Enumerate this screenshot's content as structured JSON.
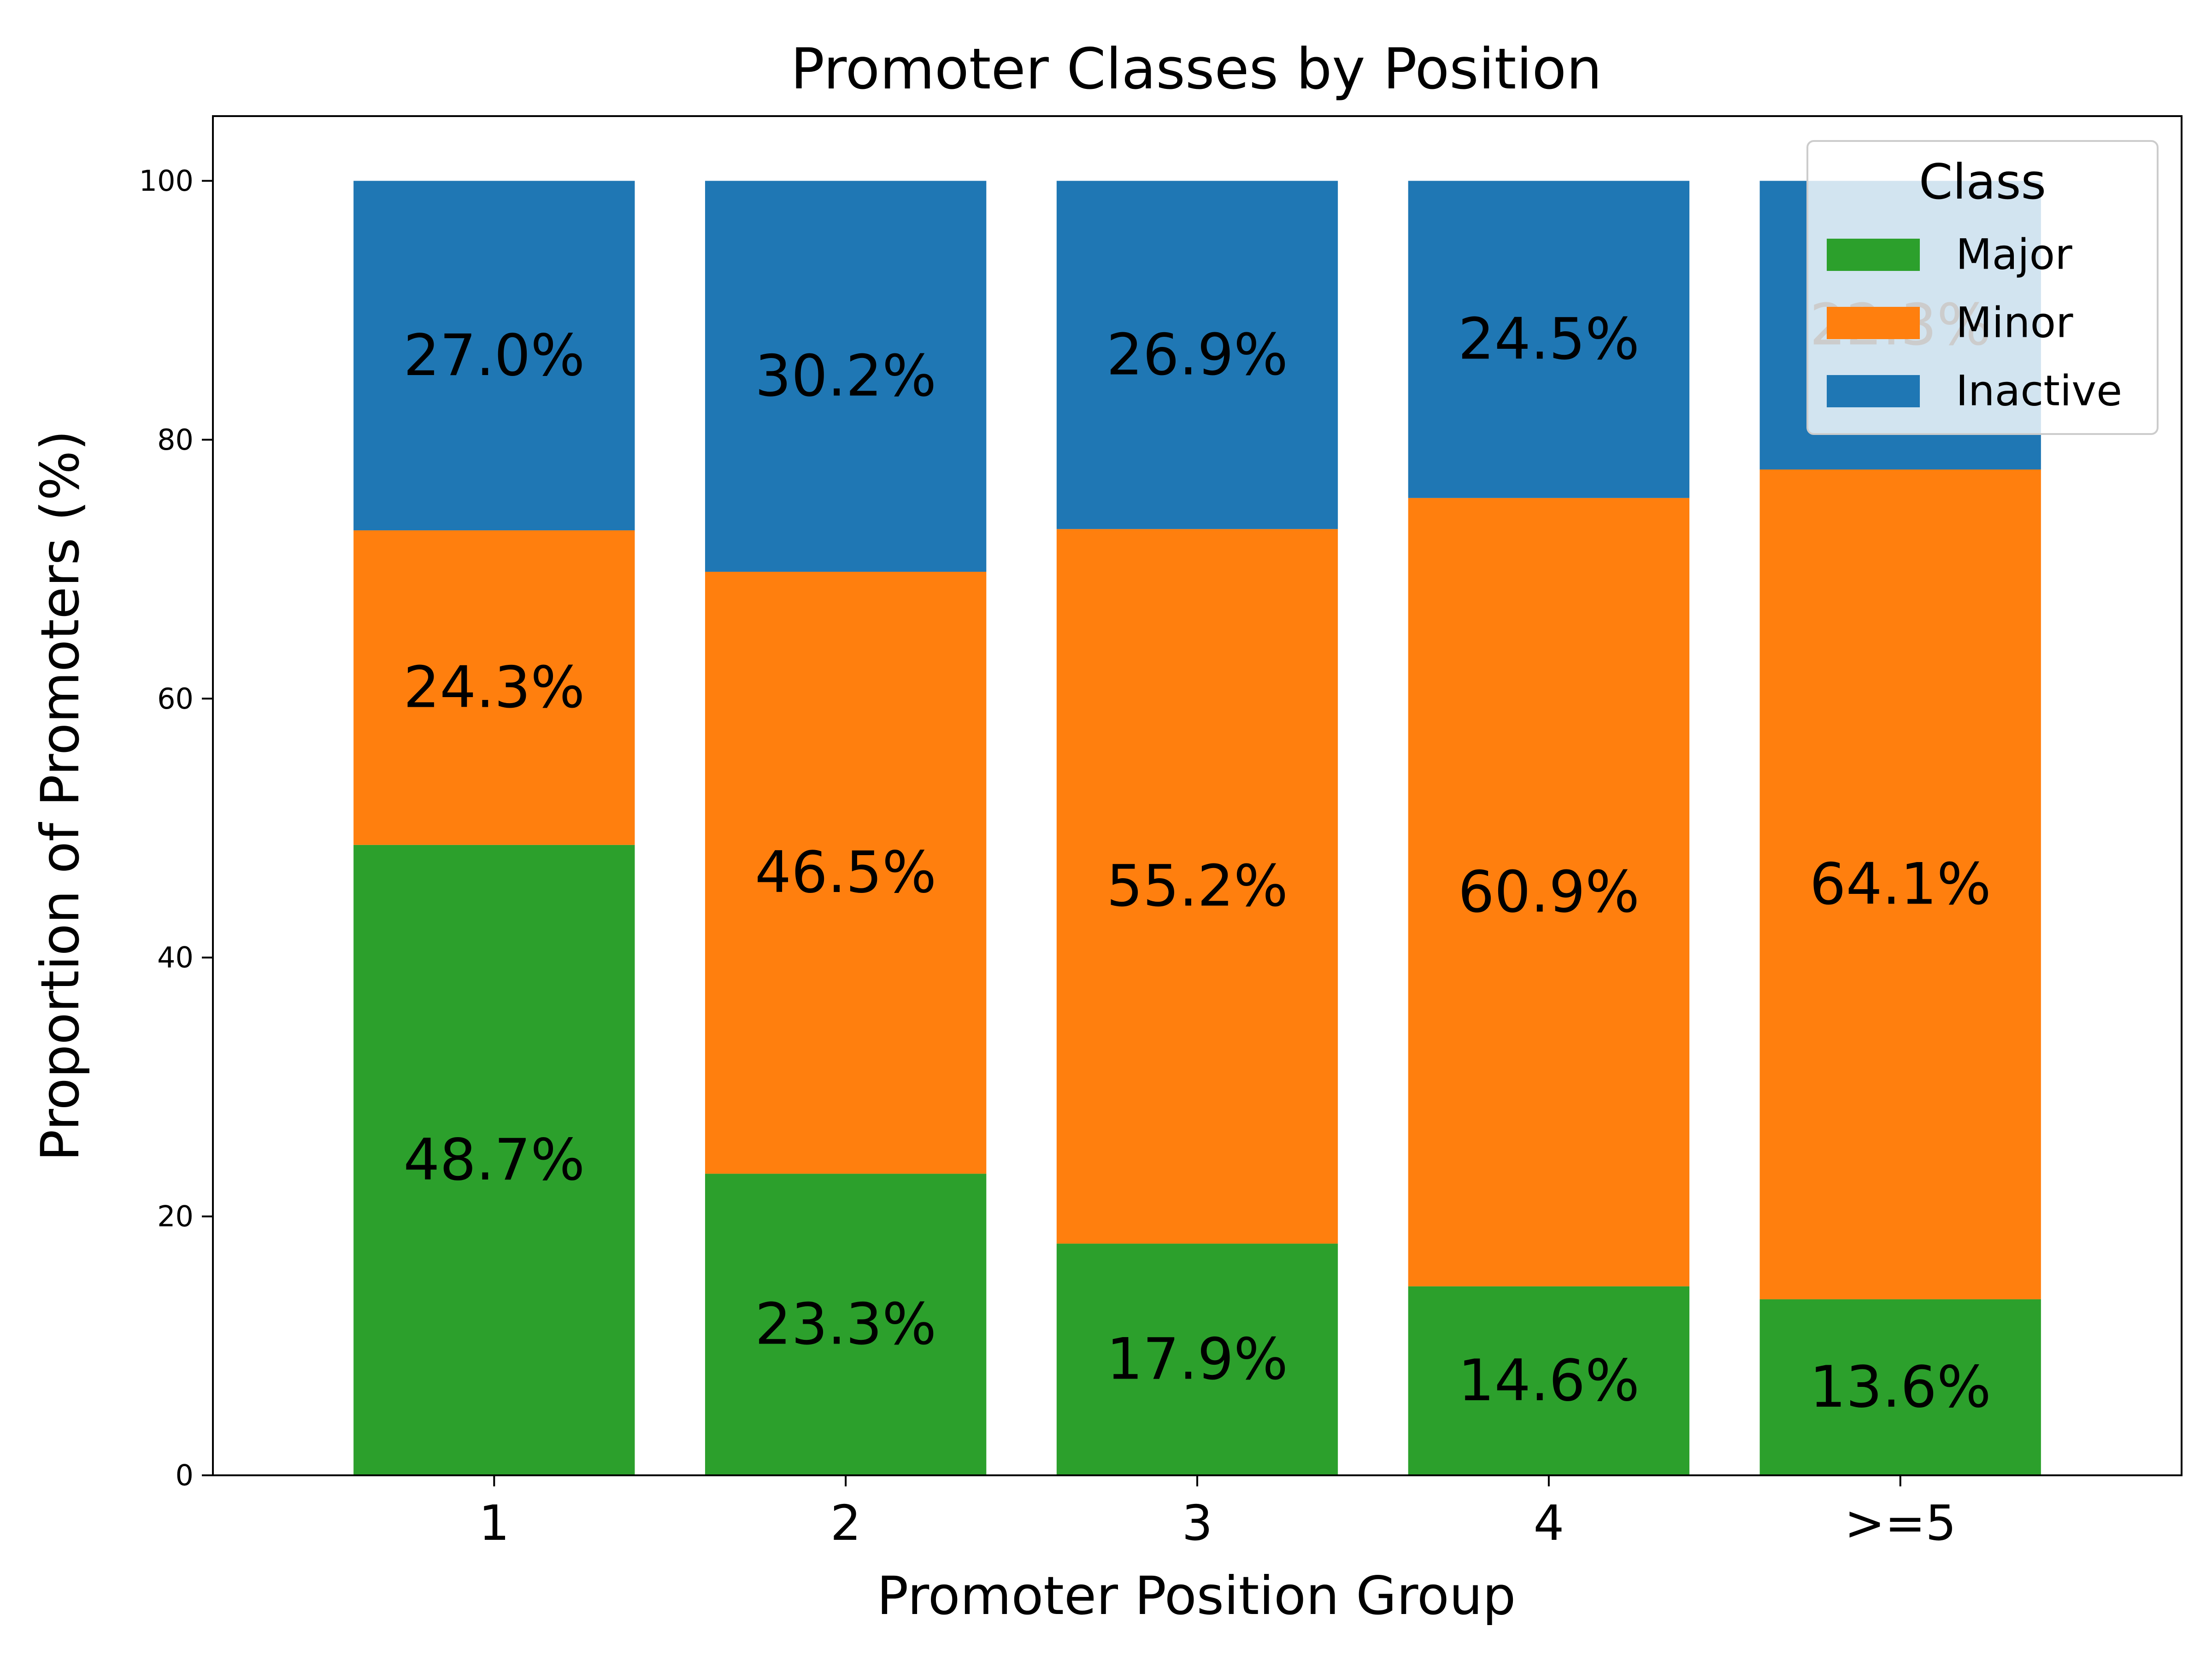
{
  "chart_data": {
    "type": "bar",
    "stacked": true,
    "title": "Promoter Classes by Position",
    "xlabel": "Promoter Position Group",
    "ylabel": "Proportion of Promoters (%)",
    "ylim": [
      0,
      105
    ],
    "yticks": [
      0,
      20,
      40,
      60,
      80,
      100
    ],
    "categories": [
      "1",
      "2",
      "3",
      "4",
      ">=5"
    ],
    "series": [
      {
        "name": "Major",
        "color": "#2ca02c",
        "values": [
          48.7,
          23.3,
          17.9,
          14.6,
          13.6
        ],
        "labels": [
          "48.7%",
          "23.3%",
          "17.9%",
          "14.6%",
          "13.6%"
        ]
      },
      {
        "name": "Minor",
        "color": "#ff7f0e",
        "values": [
          24.3,
          46.5,
          55.2,
          60.9,
          64.1
        ],
        "labels": [
          "24.3%",
          "46.5%",
          "55.2%",
          "60.9%",
          "64.1%"
        ]
      },
      {
        "name": "Inactive",
        "color": "#1f77b4",
        "values": [
          27.0,
          30.2,
          26.9,
          24.5,
          22.3
        ],
        "labels": [
          "27.0%",
          "30.2%",
          "26.9%",
          "24.5%",
          "22.3%"
        ]
      }
    ],
    "legend": {
      "title": "Class",
      "placement": "top-right",
      "entries": [
        "Major",
        "Minor",
        "Inactive"
      ]
    },
    "grid": false
  }
}
